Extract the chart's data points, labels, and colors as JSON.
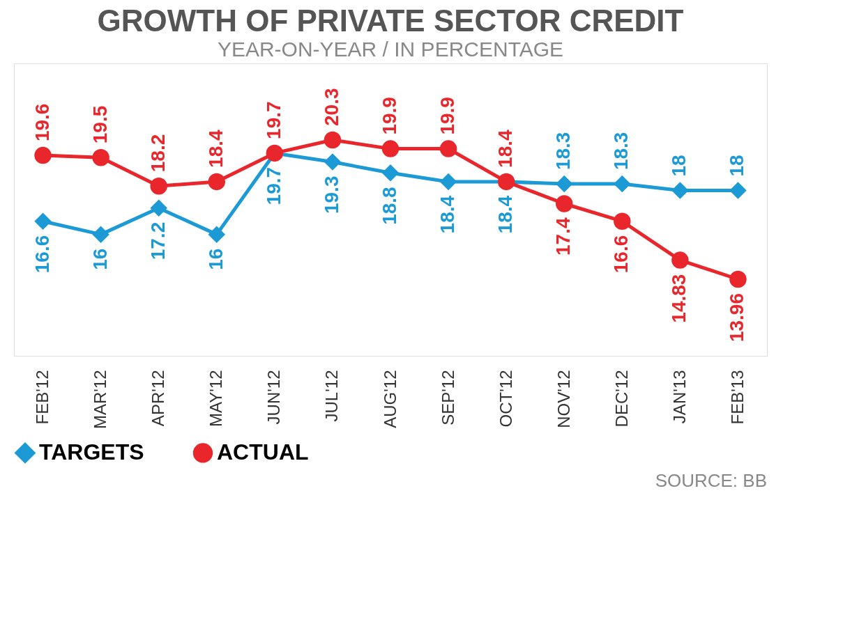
{
  "chart_data": {
    "type": "line",
    "title": "GROWTH OF PRIVATE SECTOR CREDIT",
    "subtitle": "YEAR-ON-YEAR / IN PERCENTAGE",
    "categories": [
      "FEB'12",
      "MAR'12",
      "APR'12",
      "MAY'12",
      "JUN'12",
      "JUL'12",
      "AUG'12",
      "SEP'12",
      "OCT'12",
      "NOV'12",
      "DEC'12",
      "JAN'13",
      "FEB'13"
    ],
    "series": [
      {
        "name": "TARGETS",
        "color": "#1b9ad6",
        "marker": "diamond",
        "values": [
          16.6,
          16,
          17.2,
          16,
          19.7,
          19.3,
          18.8,
          18.4,
          18.4,
          18.3,
          18.3,
          18,
          18
        ]
      },
      {
        "name": "ACTUAL",
        "color": "#e8262b",
        "marker": "circle",
        "values": [
          19.6,
          19.5,
          18.2,
          18.4,
          19.7,
          20.3,
          19.9,
          19.9,
          18.4,
          17.4,
          16.6,
          14.83,
          13.96
        ]
      }
    ],
    "data_labels": true,
    "legend": "bottom",
    "grid": false,
    "annotations": [
      "SOURCE: BB"
    ]
  }
}
